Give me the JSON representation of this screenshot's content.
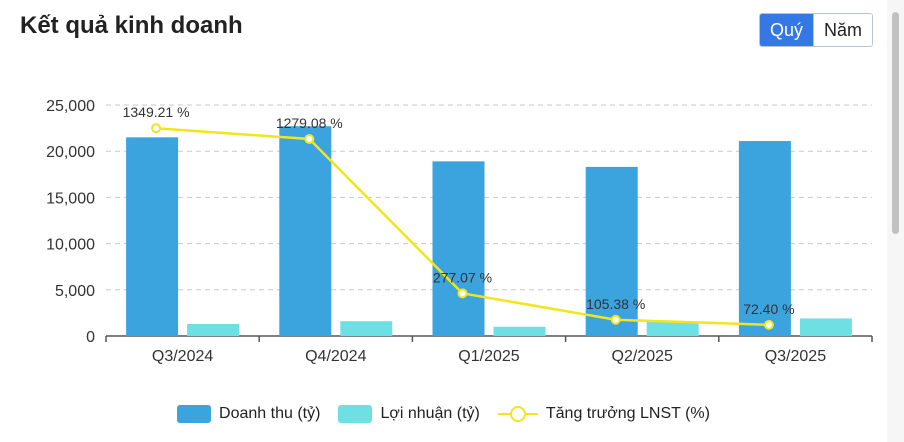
{
  "header": {
    "title": "Kết quả kinh doanh",
    "toggle": [
      {
        "label": "Quý",
        "active": true
      },
      {
        "label": "Năm",
        "active": false
      }
    ]
  },
  "colors": {
    "revenue": "#3ba3de",
    "profit": "#6ee0e4",
    "growth": "#f2e51c",
    "axis": "#555555",
    "grid": "#c9c9c9"
  },
  "chart_data": {
    "type": "bar",
    "categories": [
      "Q3/2024",
      "Q4/2024",
      "Q1/2025",
      "Q2/2025",
      "Q3/2025"
    ],
    "series": [
      {
        "name": "Doanh thu (tỷ)",
        "type": "bar",
        "values": [
          21500,
          22700,
          18900,
          18300,
          21100
        ]
      },
      {
        "name": "Lợi nhuận (tỷ)",
        "type": "bar",
        "values": [
          1300,
          1600,
          1000,
          1600,
          1900
        ]
      },
      {
        "name": "Tăng trưởng LNST (%)",
        "type": "line",
        "values": [
          1349.21,
          1279.08,
          277.07,
          105.38,
          72.4
        ],
        "labels": [
          "1349.21 %",
          "1279.08 %",
          "277.07 %",
          "105.38 %",
          "72.40 %"
        ]
      }
    ],
    "ylim": [
      0,
      25000
    ],
    "yticks": [
      0,
      5000,
      10000,
      15000,
      20000,
      25000
    ],
    "ytick_labels": [
      "0",
      "5,000",
      "10,000",
      "15,000",
      "20,000",
      "25,000"
    ],
    "y2lim": [
      0,
      1500
    ],
    "grid": true,
    "legend_position": "bottom"
  }
}
